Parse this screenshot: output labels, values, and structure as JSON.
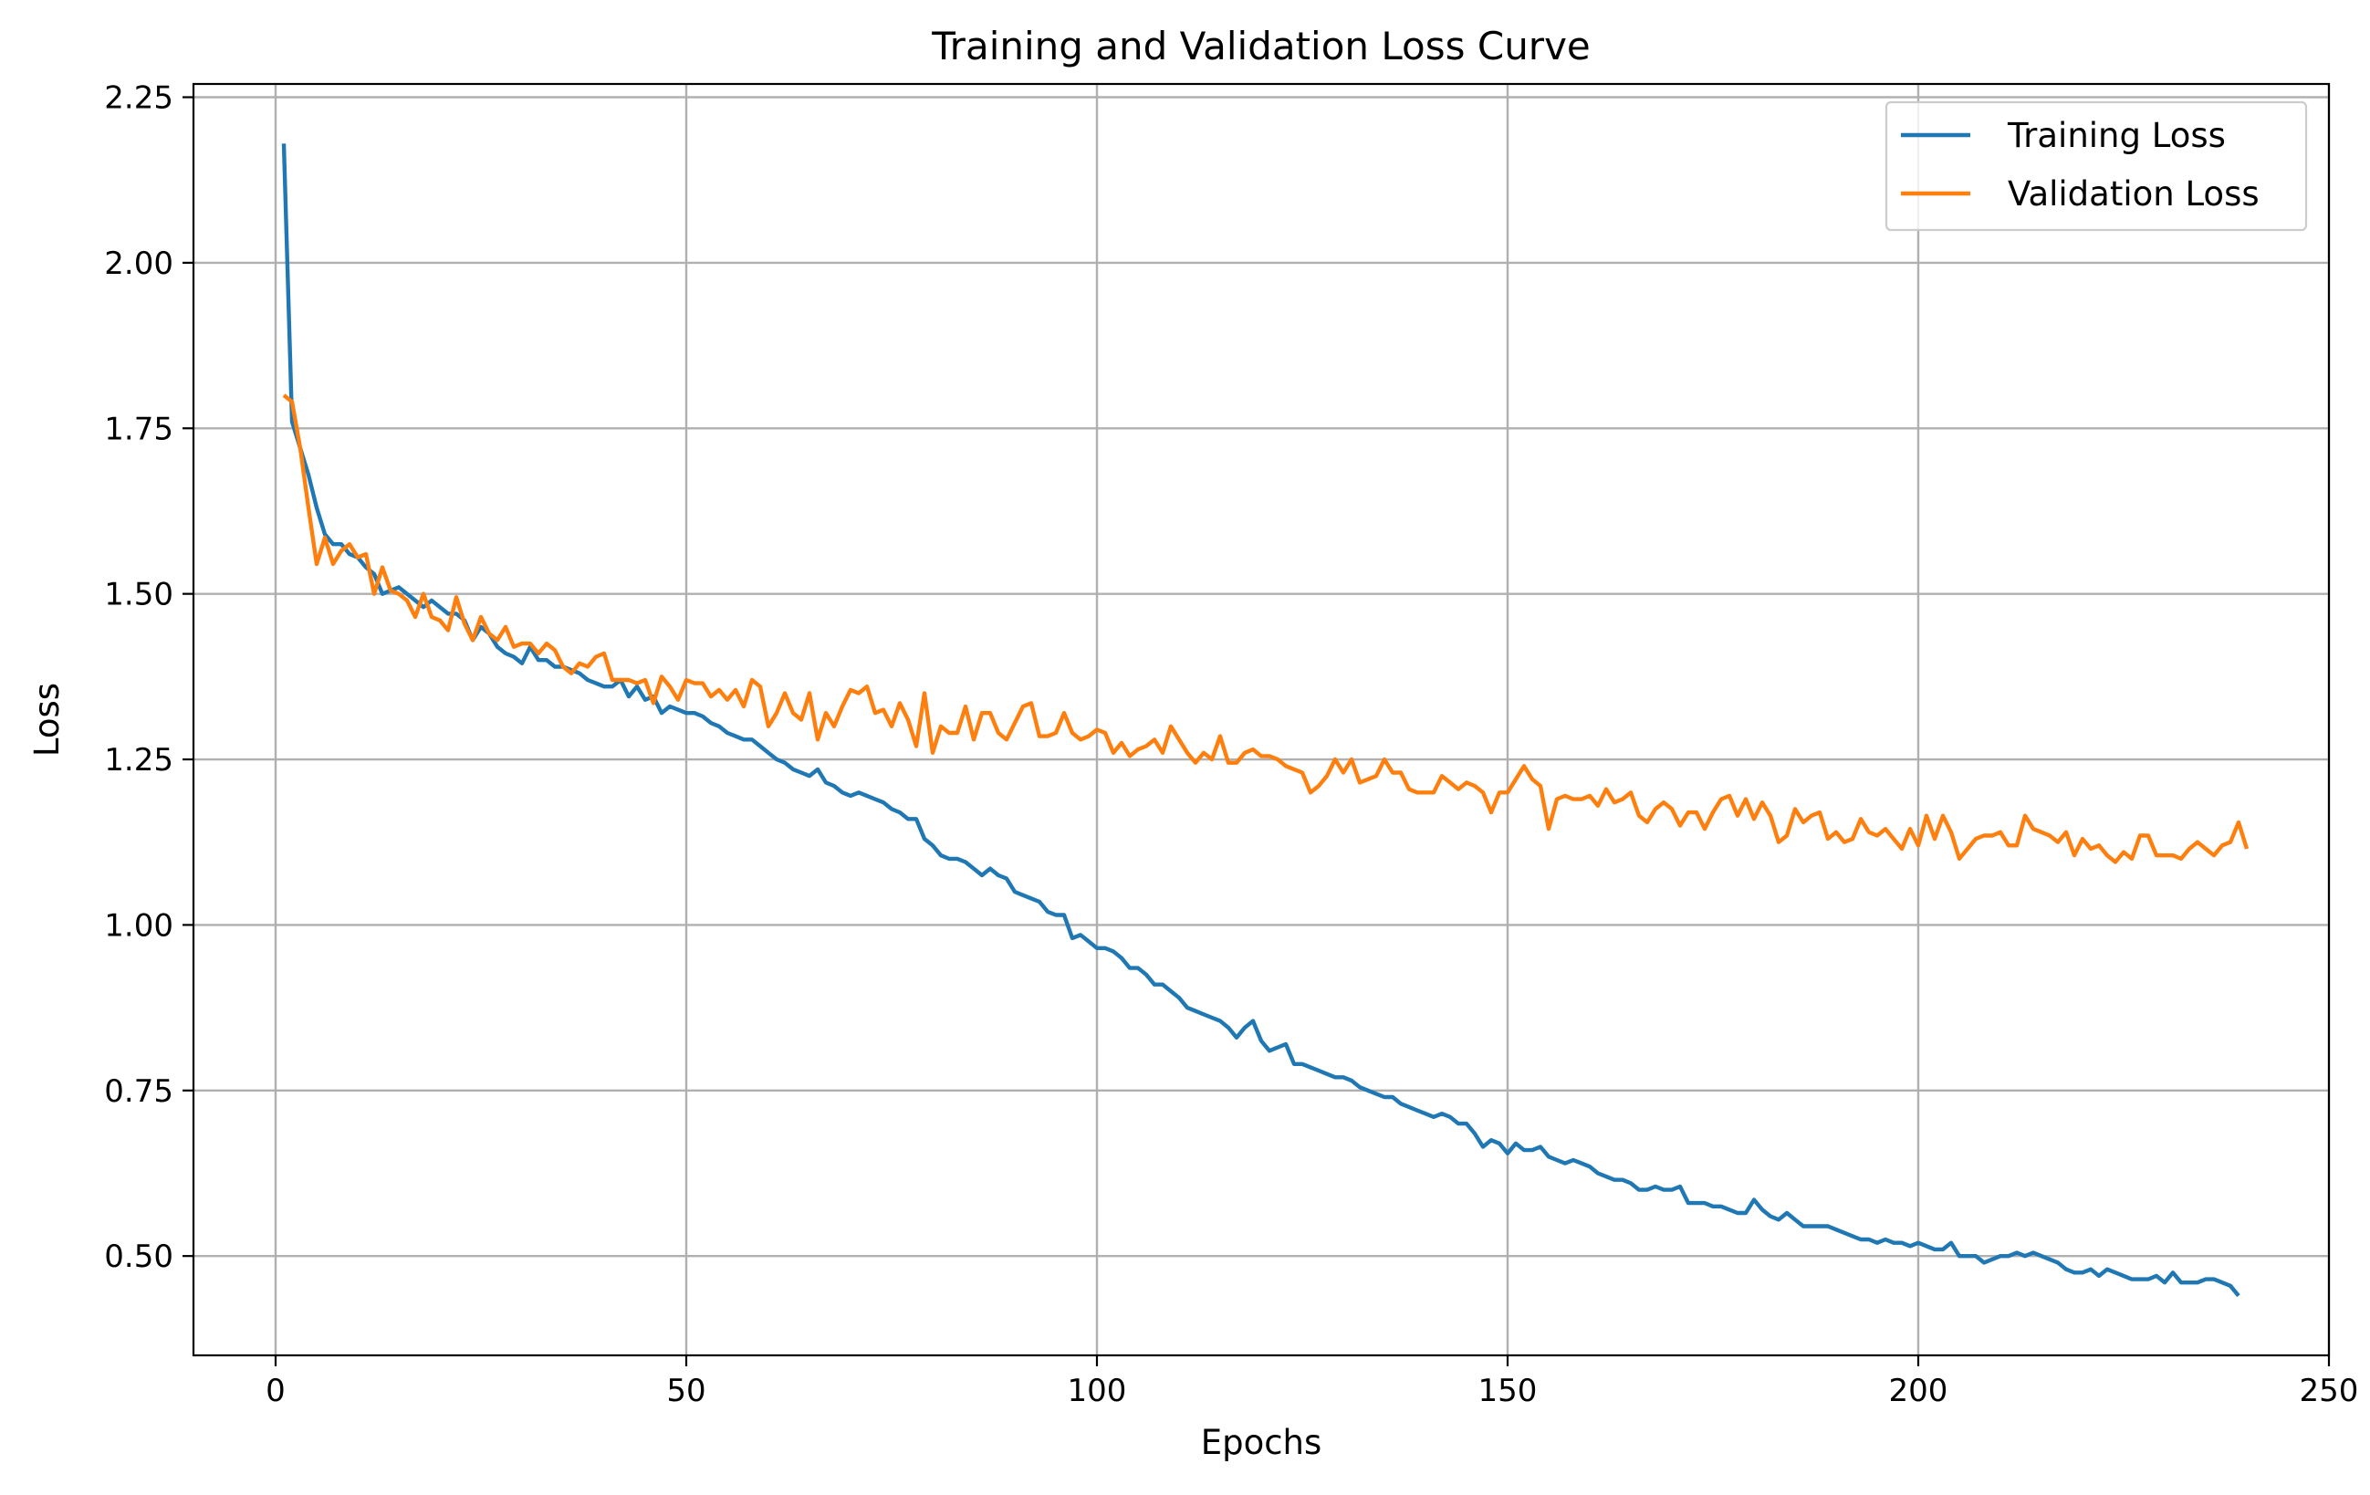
{
  "chart_data": {
    "type": "line",
    "title": "Training and Validation Loss Curve",
    "xlabel": "Epochs",
    "ylabel": "Loss",
    "xlim": [
      -10,
      250
    ],
    "ylim": [
      0.35,
      2.27
    ],
    "x_ticks": [
      0,
      50,
      100,
      150,
      200,
      250
    ],
    "x_tick_labels": [
      "0",
      "50",
      "100",
      "150",
      "200",
      "250"
    ],
    "y_ticks": [
      0.5,
      0.75,
      1.0,
      1.25,
      1.5,
      1.75,
      2.0,
      2.25
    ],
    "y_tick_labels": [
      "0.50",
      "0.75",
      "1.00",
      "1.25",
      "1.50",
      "1.75",
      "2.00",
      "2.25"
    ],
    "grid": true,
    "legend_position": "top-right",
    "x": {
      "start": 1,
      "end": 239,
      "step": 1
    },
    "series": [
      {
        "name": "Training Loss",
        "color": "#1f77b4",
        "values": [
          2.18,
          1.76,
          1.72,
          1.68,
          1.63,
          1.59,
          1.575,
          1.575,
          1.56,
          1.555,
          1.54,
          1.53,
          1.5,
          1.505,
          1.51,
          1.5,
          1.49,
          1.48,
          1.49,
          1.48,
          1.47,
          1.47,
          1.46,
          1.43,
          1.45,
          1.44,
          1.42,
          1.41,
          1.405,
          1.395,
          1.42,
          1.4,
          1.4,
          1.39,
          1.39,
          1.385,
          1.38,
          1.37,
          1.365,
          1.36,
          1.36,
          1.37,
          1.345,
          1.36,
          1.34,
          1.345,
          1.32,
          1.33,
          1.325,
          1.32,
          1.32,
          1.315,
          1.305,
          1.3,
          1.29,
          1.285,
          1.28,
          1.28,
          1.27,
          1.26,
          1.25,
          1.245,
          1.235,
          1.23,
          1.225,
          1.235,
          1.215,
          1.21,
          1.2,
          1.195,
          1.2,
          1.195,
          1.19,
          1.185,
          1.175,
          1.17,
          1.16,
          1.16,
          1.13,
          1.12,
          1.105,
          1.1,
          1.1,
          1.095,
          1.085,
          1.075,
          1.085,
          1.075,
          1.07,
          1.05,
          1.045,
          1.04,
          1.035,
          1.02,
          1.015,
          1.015,
          0.98,
          0.985,
          0.975,
          0.965,
          0.965,
          0.96,
          0.95,
          0.935,
          0.935,
          0.925,
          0.91,
          0.91,
          0.9,
          0.89,
          0.875,
          0.87,
          0.865,
          0.86,
          0.855,
          0.845,
          0.83,
          0.845,
          0.855,
          0.825,
          0.81,
          0.815,
          0.82,
          0.79,
          0.79,
          0.785,
          0.78,
          0.775,
          0.77,
          0.77,
          0.765,
          0.755,
          0.75,
          0.745,
          0.74,
          0.74,
          0.73,
          0.725,
          0.72,
          0.715,
          0.71,
          0.715,
          0.71,
          0.7,
          0.7,
          0.685,
          0.665,
          0.675,
          0.67,
          0.655,
          0.67,
          0.66,
          0.66,
          0.665,
          0.65,
          0.645,
          0.64,
          0.645,
          0.64,
          0.635,
          0.625,
          0.62,
          0.615,
          0.615,
          0.61,
          0.6,
          0.6,
          0.605,
          0.6,
          0.6,
          0.605,
          0.58,
          0.58,
          0.58,
          0.575,
          0.575,
          0.57,
          0.565,
          0.565,
          0.585,
          0.57,
          0.56,
          0.555,
          0.565,
          0.555,
          0.545,
          0.545,
          0.545,
          0.545,
          0.54,
          0.535,
          0.53,
          0.525,
          0.525,
          0.52,
          0.525,
          0.52,
          0.52,
          0.515,
          0.52,
          0.515,
          0.51,
          0.51,
          0.52,
          0.5,
          0.5,
          0.5,
          0.49,
          0.495,
          0.5,
          0.5,
          0.505,
          0.5,
          0.505,
          0.5,
          0.495,
          0.49,
          0.48,
          0.475,
          0.475,
          0.48,
          0.47,
          0.48,
          0.475,
          0.47,
          0.465,
          0.465,
          0.465,
          0.47,
          0.46,
          0.475,
          0.46,
          0.46,
          0.46,
          0.465,
          0.465,
          0.46,
          0.455,
          0.44
        ]
      },
      {
        "name": "Validation Loss",
        "color": "#ff7f0e",
        "values": [
          1.8,
          1.79,
          1.72,
          1.63,
          1.545,
          1.585,
          1.545,
          1.565,
          1.575,
          1.555,
          1.56,
          1.5,
          1.54,
          1.505,
          1.5,
          1.49,
          1.465,
          1.5,
          1.465,
          1.46,
          1.445,
          1.495,
          1.455,
          1.43,
          1.465,
          1.44,
          1.43,
          1.45,
          1.42,
          1.425,
          1.425,
          1.41,
          1.425,
          1.415,
          1.39,
          1.38,
          1.395,
          1.39,
          1.405,
          1.41,
          1.37,
          1.37,
          1.37,
          1.365,
          1.37,
          1.335,
          1.375,
          1.36,
          1.34,
          1.37,
          1.365,
          1.365,
          1.345,
          1.355,
          1.34,
          1.355,
          1.33,
          1.37,
          1.36,
          1.3,
          1.32,
          1.35,
          1.32,
          1.31,
          1.35,
          1.28,
          1.32,
          1.3,
          1.33,
          1.355,
          1.35,
          1.36,
          1.32,
          1.325,
          1.3,
          1.335,
          1.31,
          1.27,
          1.35,
          1.26,
          1.3,
          1.29,
          1.29,
          1.33,
          1.28,
          1.32,
          1.32,
          1.29,
          1.28,
          1.305,
          1.33,
          1.335,
          1.285,
          1.285,
          1.29,
          1.32,
          1.29,
          1.28,
          1.285,
          1.295,
          1.29,
          1.26,
          1.275,
          1.255,
          1.265,
          1.27,
          1.28,
          1.26,
          1.3,
          1.28,
          1.26,
          1.245,
          1.26,
          1.25,
          1.285,
          1.245,
          1.245,
          1.26,
          1.265,
          1.255,
          1.255,
          1.25,
          1.24,
          1.235,
          1.23,
          1.2,
          1.21,
          1.225,
          1.25,
          1.23,
          1.25,
          1.215,
          1.22,
          1.225,
          1.25,
          1.23,
          1.23,
          1.205,
          1.2,
          1.2,
          1.2,
          1.225,
          1.215,
          1.205,
          1.215,
          1.21,
          1.2,
          1.17,
          1.2,
          1.2,
          1.22,
          1.24,
          1.22,
          1.21,
          1.145,
          1.19,
          1.195,
          1.19,
          1.19,
          1.195,
          1.18,
          1.205,
          1.185,
          1.19,
          1.2,
          1.165,
          1.155,
          1.175,
          1.185,
          1.175,
          1.15,
          1.17,
          1.17,
          1.145,
          1.17,
          1.19,
          1.195,
          1.165,
          1.19,
          1.16,
          1.185,
          1.165,
          1.125,
          1.135,
          1.175,
          1.155,
          1.165,
          1.17,
          1.13,
          1.14,
          1.125,
          1.13,
          1.16,
          1.14,
          1.135,
          1.145,
          1.13,
          1.115,
          1.145,
          1.12,
          1.165,
          1.13,
          1.165,
          1.14,
          1.1,
          1.115,
          1.13,
          1.135,
          1.135,
          1.14,
          1.12,
          1.12,
          1.165,
          1.145,
          1.14,
          1.135,
          1.125,
          1.14,
          1.105,
          1.13,
          1.115,
          1.12,
          1.105,
          1.095,
          1.11,
          1.1,
          1.135,
          1.135,
          1.105,
          1.105,
          1.105,
          1.1,
          1.115,
          1.125,
          1.115,
          1.105,
          1.12,
          1.125,
          1.155,
          1.115
        ]
      }
    ]
  }
}
